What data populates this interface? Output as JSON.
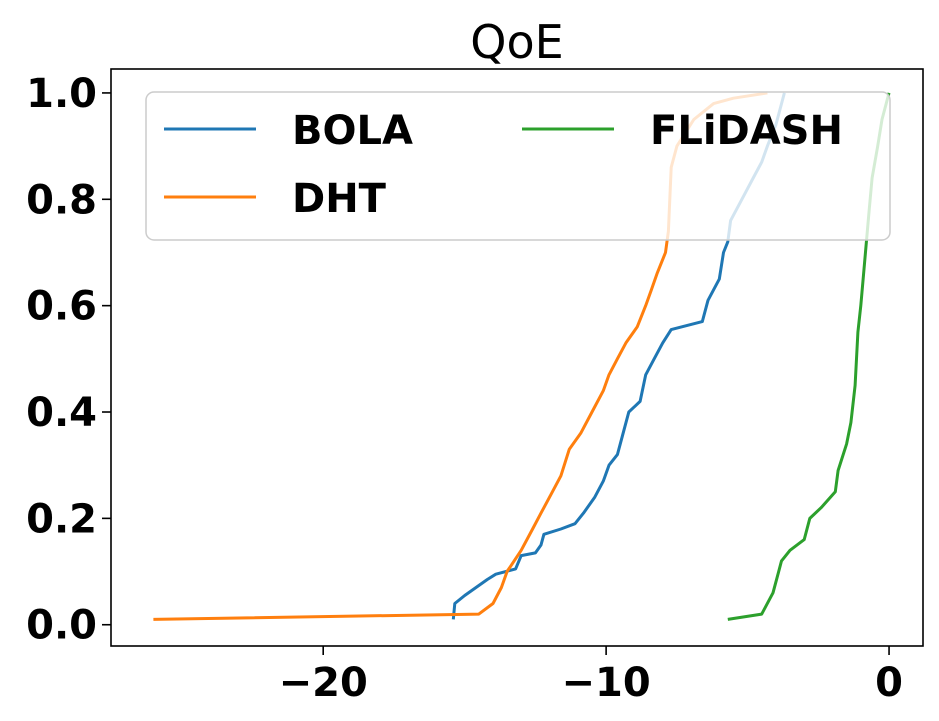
{
  "chart_data": {
    "type": "line",
    "title": "QoE",
    "xlabel": "",
    "ylabel": "",
    "xlim": [
      -27.5,
      1.2
    ],
    "ylim": [
      -0.04,
      1.045
    ],
    "x_ticks": [
      -20,
      -10,
      0
    ],
    "x_tick_labels": [
      "−20",
      "−10",
      "0"
    ],
    "y_ticks": [
      0.0,
      0.2,
      0.4,
      0.6,
      0.8,
      1.0
    ],
    "y_tick_labels": [
      "0.0",
      "0.2",
      "0.4",
      "0.6",
      "0.8",
      "1.0"
    ],
    "grid": false,
    "legend": {
      "position": "top",
      "columns": 2
    },
    "series": [
      {
        "name": "BOLA",
        "color": "#1f77b4",
        "points": [
          [
            -15.4,
            0.01
          ],
          [
            -15.35,
            0.04
          ],
          [
            -15.0,
            0.055
          ],
          [
            -14.6,
            0.07
          ],
          [
            -14.2,
            0.085
          ],
          [
            -13.9,
            0.095
          ],
          [
            -13.2,
            0.105
          ],
          [
            -13.0,
            0.13
          ],
          [
            -12.5,
            0.135
          ],
          [
            -12.3,
            0.15
          ],
          [
            -12.2,
            0.17
          ],
          [
            -11.6,
            0.18
          ],
          [
            -11.1,
            0.19
          ],
          [
            -10.8,
            0.21
          ],
          [
            -10.4,
            0.24
          ],
          [
            -10.1,
            0.27
          ],
          [
            -9.9,
            0.3
          ],
          [
            -9.6,
            0.32
          ],
          [
            -9.4,
            0.36
          ],
          [
            -9.2,
            0.4
          ],
          [
            -8.8,
            0.42
          ],
          [
            -8.6,
            0.47
          ],
          [
            -8.3,
            0.5
          ],
          [
            -8.0,
            0.53
          ],
          [
            -7.7,
            0.555
          ],
          [
            -6.6,
            0.57
          ],
          [
            -6.4,
            0.61
          ],
          [
            -6.0,
            0.65
          ],
          [
            -5.85,
            0.7
          ],
          [
            -5.7,
            0.72
          ],
          [
            -5.6,
            0.76
          ],
          [
            -5.2,
            0.8
          ],
          [
            -4.8,
            0.84
          ],
          [
            -4.5,
            0.87
          ],
          [
            -4.3,
            0.9
          ],
          [
            -4.0,
            0.94
          ],
          [
            -3.7,
            1.0
          ]
        ]
      },
      {
        "name": "DHT",
        "color": "#ff7f0e",
        "points": [
          [
            -26.0,
            0.01
          ],
          [
            -14.5,
            0.02
          ],
          [
            -14.0,
            0.04
          ],
          [
            -13.7,
            0.07
          ],
          [
            -13.5,
            0.1
          ],
          [
            -13.0,
            0.14
          ],
          [
            -12.6,
            0.18
          ],
          [
            -12.3,
            0.21
          ],
          [
            -11.9,
            0.25
          ],
          [
            -11.6,
            0.28
          ],
          [
            -11.3,
            0.33
          ],
          [
            -10.9,
            0.36
          ],
          [
            -10.5,
            0.4
          ],
          [
            -10.1,
            0.44
          ],
          [
            -9.9,
            0.47
          ],
          [
            -9.6,
            0.5
          ],
          [
            -9.3,
            0.53
          ],
          [
            -8.9,
            0.56
          ],
          [
            -8.6,
            0.6
          ],
          [
            -8.4,
            0.63
          ],
          [
            -8.2,
            0.66
          ],
          [
            -7.9,
            0.7
          ],
          [
            -7.8,
            0.74
          ],
          [
            -7.75,
            0.8
          ],
          [
            -7.7,
            0.86
          ],
          [
            -7.5,
            0.9
          ],
          [
            -6.9,
            0.95
          ],
          [
            -6.2,
            0.98
          ],
          [
            -5.5,
            0.99
          ],
          [
            -4.3,
            1.0
          ]
        ]
      },
      {
        "name": "FLiDASH",
        "color": "#2ca02c",
        "points": [
          [
            -5.7,
            0.01
          ],
          [
            -4.5,
            0.02
          ],
          [
            -4.1,
            0.06
          ],
          [
            -3.9,
            0.1
          ],
          [
            -3.8,
            0.12
          ],
          [
            -3.5,
            0.14
          ],
          [
            -3.0,
            0.16
          ],
          [
            -2.8,
            0.2
          ],
          [
            -2.4,
            0.22
          ],
          [
            -1.9,
            0.25
          ],
          [
            -1.8,
            0.29
          ],
          [
            -1.5,
            0.34
          ],
          [
            -1.35,
            0.38
          ],
          [
            -1.2,
            0.45
          ],
          [
            -1.15,
            0.5
          ],
          [
            -1.1,
            0.55
          ],
          [
            -1.0,
            0.6
          ],
          [
            -0.9,
            0.66
          ],
          [
            -0.8,
            0.72
          ],
          [
            -0.7,
            0.78
          ],
          [
            -0.6,
            0.84
          ],
          [
            -0.4,
            0.9
          ],
          [
            -0.25,
            0.95
          ],
          [
            -0.1,
            0.98
          ],
          [
            0.0,
            1.0
          ]
        ]
      }
    ]
  }
}
